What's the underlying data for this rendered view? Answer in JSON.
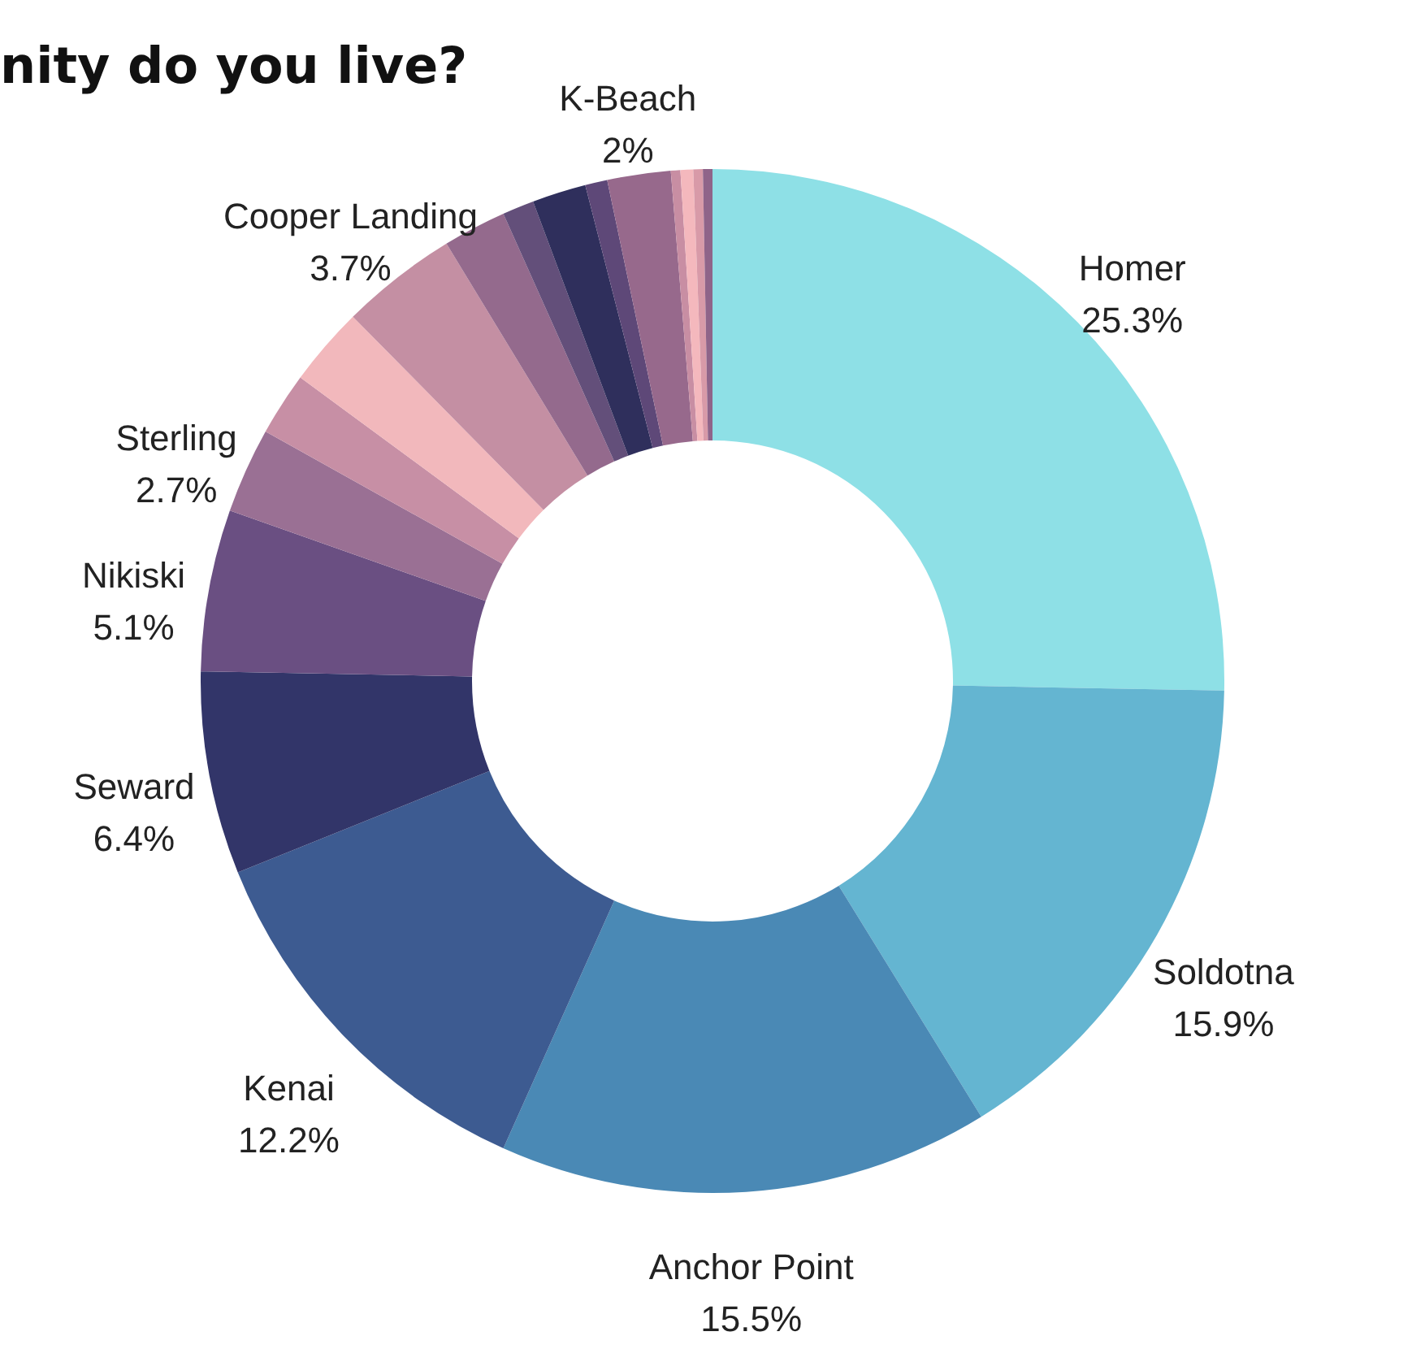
{
  "chart_data": {
    "type": "donut",
    "title": "nity do you live?",
    "categories": [
      "Homer",
      "Soldotna",
      "Anchor Point",
      "Kenai",
      "Seward",
      "Nikiski",
      "Sterling",
      null,
      null,
      "Cooper Landing",
      null,
      null,
      null,
      null,
      "K-Beach",
      null,
      null,
      null,
      null
    ],
    "values": [
      25.3,
      15.9,
      15.5,
      12.2,
      6.4,
      5.1,
      2.7,
      2.0,
      2.5,
      3.7,
      2.0,
      1.0,
      1.7,
      0.7,
      2,
      0.3,
      0.4,
      0.3,
      0.3
    ],
    "value_labels": [
      "25.3%",
      "15.9%",
      "15.5%",
      "12.2%",
      "6.4%",
      "5.1%",
      "2.7%",
      null,
      null,
      "3.7%",
      null,
      null,
      null,
      null,
      "2%",
      null,
      null,
      null,
      null
    ],
    "colors": [
      "#8ee0e6",
      "#64b5d1",
      "#4a89b5",
      "#3d5b91",
      "#323569",
      "#6a4f82",
      "#9a7094",
      "#c78fa5",
      "#f2b8bc",
      "#c48fa3",
      "#946a8d",
      "#634f7a",
      "#2f2f5c",
      "#5e4878",
      "#97698c",
      "#c88ea3",
      "#f4b8bd",
      "#d89aa8",
      "#8f6489"
    ],
    "legend": false
  }
}
